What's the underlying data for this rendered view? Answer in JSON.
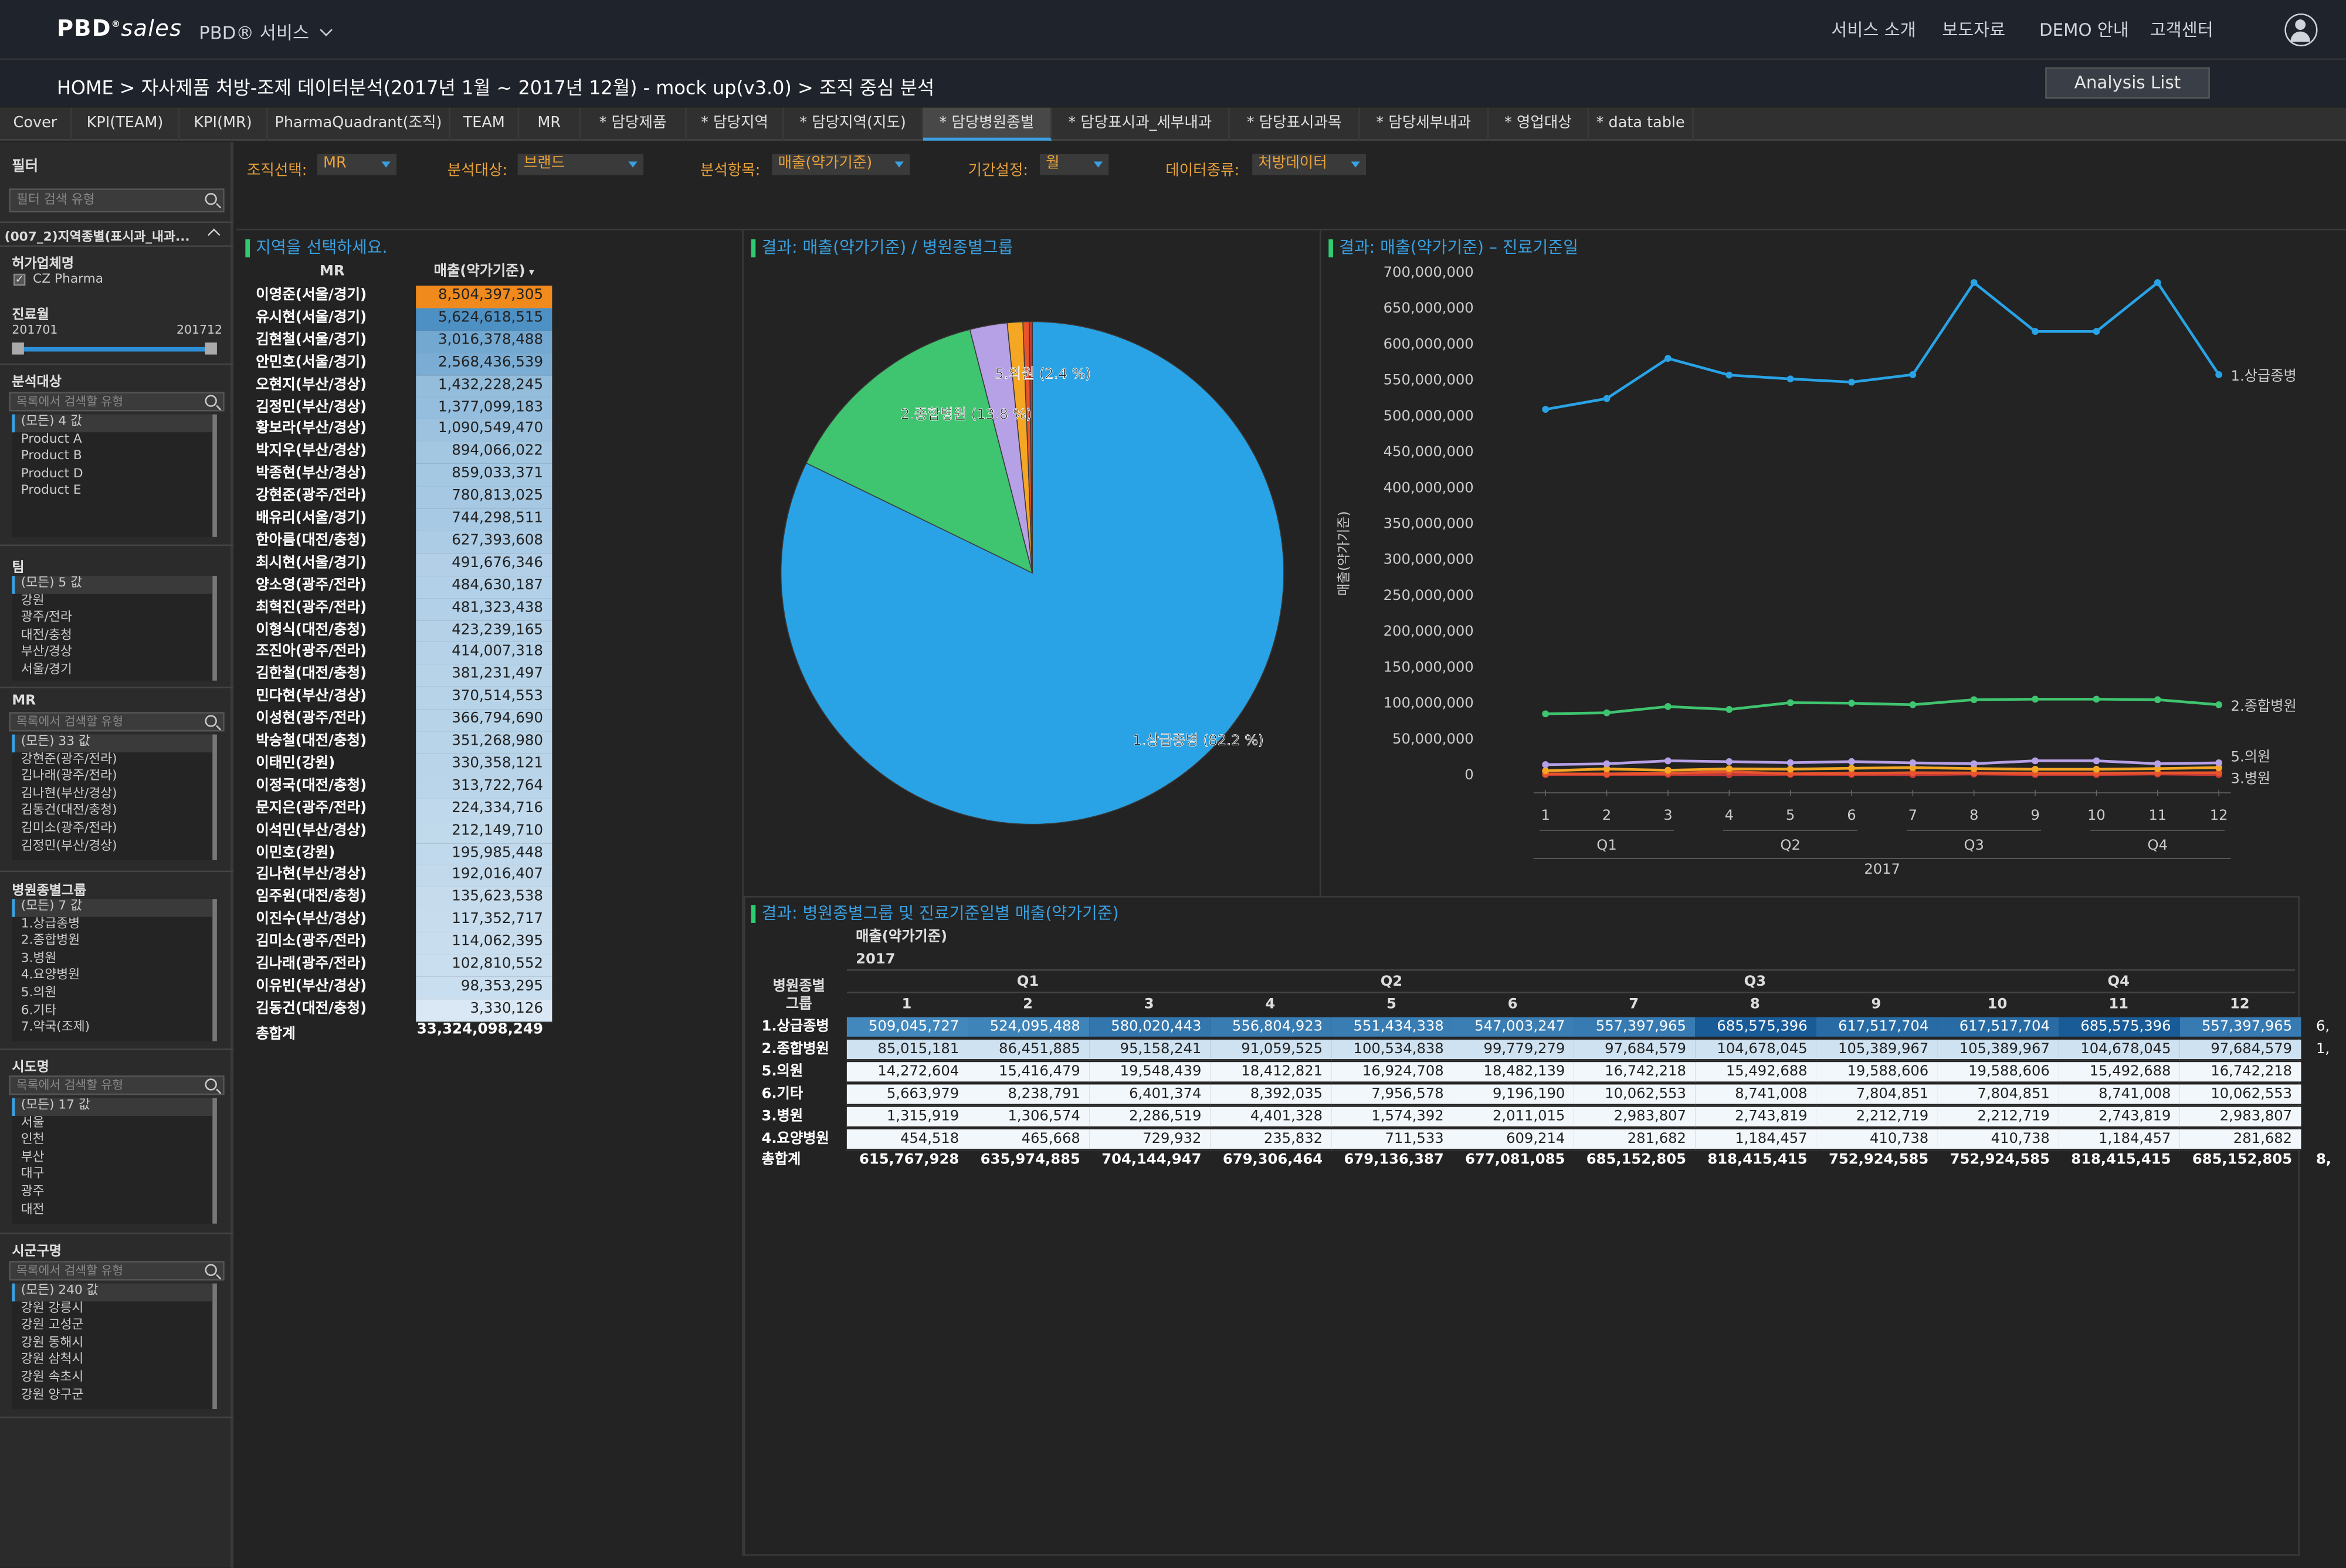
{
  "header": {
    "logo_main": "PBD",
    "logo_sales": "sales",
    "service_menu": "PBD® 서비스",
    "nav": [
      "서비스 소개",
      "보도자료",
      "DEMO 안내",
      "고객센터"
    ]
  },
  "breadcrumb": "HOME >  자사제품 처방-조제 데이터분석(2017년 1월 ~ 2017년 12월) - mock up(v3.0) > 조직 중심 분석",
  "analysis_list": "Analysis List",
  "tabs": [
    "Cover",
    "KPI(TEAM)",
    "KPI(MR)",
    "PharmaQuadrant(조직)",
    "TEAM",
    "MR",
    "* 담당제품",
    "* 담당지역",
    "* 담당지역(지도)",
    "* 담당병원종별",
    "* 담당표시과_세부내과",
    "* 담당표시과목",
    "* 담당세부내과",
    "* 영업대상",
    "* data table"
  ],
  "active_tab": "* 담당병원종별",
  "sidebar": {
    "title": "필터",
    "search_placeholder": "필터 검색 유형",
    "group_header": "(007_2)지역종별(표시과_내과...",
    "permit_title": "허가업체명",
    "permit_item": "CZ Pharma",
    "period_title": "진료월",
    "period_start": "201701",
    "period_end": "201712",
    "target_title": "분석대상",
    "target_placeholder": "목록에서 검색할 유형",
    "target_items": [
      "(모든) 4 값",
      "Product A",
      "Product B",
      "Product D",
      "Product E"
    ],
    "team_title": "팀",
    "team_items": [
      "(모든) 5 값",
      "강원",
      "광주/전라",
      "대전/충청",
      "부산/경상",
      "서울/경기"
    ],
    "mr_title": "MR",
    "mr_placeholder": "목록에서 검색할 유형",
    "mr_items": [
      "(모든) 33 값",
      "강현준(광주/전라)",
      "김나래(광주/전라)",
      "김나현(부산/경상)",
      "김동건(대전/충청)",
      "김미소(광주/전라)",
      "김정민(부산/경상)"
    ],
    "hosp_title": "병원종별그룹",
    "hosp_items": [
      "(모든) 7 값",
      "1.상급종병",
      "2.종합병원",
      "3.병원",
      "4.요양병원",
      "5.의원",
      "6.기타",
      "7.약국(조제)"
    ],
    "sido_title": "시도명",
    "sido_placeholder": "목록에서 검색할 유형",
    "sido_items": [
      "(모든) 17 값",
      "서울",
      "인천",
      "부산",
      "대구",
      "광주",
      "대전"
    ],
    "sigungu_title": "시군구명",
    "sigungu_placeholder": "목록에서 검색할 유형",
    "sigungu_items": [
      "(모든) 240 값",
      "강원 강릉시",
      "강원 고성군",
      "강원 동해시",
      "강원 삼척시",
      "강원 속초시",
      "강원 양구군"
    ]
  },
  "filters": [
    {
      "label": "조직선택:",
      "value": "MR"
    },
    {
      "label": "분석대상:",
      "value": "브랜드"
    },
    {
      "label": "분석항목:",
      "value": "매출(약가기준)"
    },
    {
      "label": "기간설정:",
      "value": "월"
    },
    {
      "label": "데이터종류:",
      "value": "처방데이터"
    }
  ],
  "mr_panel": {
    "title": "지역을 선택하세요.",
    "col_mr": "MR",
    "col_sales": "매출(약가기준)",
    "total_label": "총합계",
    "total_value": "33,324,098,249",
    "rows": [
      [
        "이영준(서울/경기)",
        "8,504,397,305",
        8504397305
      ],
      [
        "유시현(서울/경기)",
        "5,624,618,515",
        5624618515
      ],
      [
        "김현철(서울/경기)",
        "3,016,378,488",
        3016378488
      ],
      [
        "안민호(서울/경기)",
        "2,568,436,539",
        2568436539
      ],
      [
        "오현지(부산/경상)",
        "1,432,228,245",
        1432228245
      ],
      [
        "김정민(부산/경상)",
        "1,377,099,183",
        1377099183
      ],
      [
        "황보라(부산/경상)",
        "1,090,549,470",
        1090549470
      ],
      [
        "박지우(부산/경상)",
        "894,066,022",
        894066022
      ],
      [
        "박종현(부산/경상)",
        "859,033,371",
        859033371
      ],
      [
        "강현준(광주/전라)",
        "780,813,025",
        780813025
      ],
      [
        "배유리(서울/경기)",
        "744,298,511",
        744298511
      ],
      [
        "한아름(대전/충청)",
        "627,393,608",
        627393608
      ],
      [
        "최시현(서울/경기)",
        "491,676,346",
        491676346
      ],
      [
        "양소영(광주/전라)",
        "484,630,187",
        484630187
      ],
      [
        "최혁진(광주/전라)",
        "481,323,438",
        481323438
      ],
      [
        "이형식(대전/충청)",
        "423,239,165",
        423239165
      ],
      [
        "조진아(광주/전라)",
        "414,007,318",
        414007318
      ],
      [
        "김한철(대전/충청)",
        "381,231,497",
        381231497
      ],
      [
        "민다현(부산/경상)",
        "370,514,553",
        370514553
      ],
      [
        "이성현(광주/전라)",
        "366,794,690",
        366794690
      ],
      [
        "박승철(대전/충청)",
        "351,268,980",
        351268980
      ],
      [
        "이태민(강원)",
        "330,358,121",
        330358121
      ],
      [
        "이정국(대전/충청)",
        "313,722,764",
        313722764
      ],
      [
        "문지은(광주/전라)",
        "224,334,716",
        224334716
      ],
      [
        "이석민(부산/경상)",
        "212,149,710",
        212149710
      ],
      [
        "이민호(강원)",
        "195,985,448",
        195985448
      ],
      [
        "김나현(부산/경상)",
        "192,016,407",
        192016407
      ],
      [
        "임주원(대전/충청)",
        "135,623,538",
        135623538
      ],
      [
        "이진수(부산/경상)",
        "117,352,717",
        117352717
      ],
      [
        "김미소(광주/전라)",
        "114,062,395",
        114062395
      ],
      [
        "김나래(광주/전라)",
        "102,810,552",
        102810552
      ],
      [
        "이유빈(부산/경상)",
        "98,353,295",
        98353295
      ],
      [
        "김동건(대전/충청)",
        "3,330,126",
        3330126
      ]
    ]
  },
  "pie_panel": {
    "title": "결과: 매출(약가기준) / 병원종별그룹"
  },
  "line_panel": {
    "title": "결과: 매출(약가기준) – 진료기준일",
    "ylabel": "매출(약가기준)",
    "year": "2017",
    "quarters": [
      "Q1",
      "Q2",
      "Q3",
      "Q4"
    ]
  },
  "table_panel": {
    "title": "결과: 병원종별그룹 및 진료기준일별 매출(약가기준)",
    "measure": "매출(약가기준)",
    "year": "2017",
    "row_header": "병원종별\n그룹",
    "quarters": [
      "Q1",
      "Q2",
      "Q3",
      "Q4"
    ],
    "months": [
      "1",
      "2",
      "3",
      "4",
      "5",
      "6",
      "7",
      "8",
      "9",
      "10",
      "11",
      "12"
    ],
    "rows": [
      {
        "label": "1.상급종병",
        "values": [
          "509,045,727",
          "524,095,488",
          "580,020,443",
          "556,804,923",
          "551,434,338",
          "547,003,247",
          "557,397,965",
          "685,575,396",
          "617,517,704",
          "617,517,704",
          "685,575,396",
          "557,397,965"
        ],
        "overflow": "6,"
      },
      {
        "label": "2.종합병원",
        "values": [
          "85,015,181",
          "86,451,885",
          "95,158,241",
          "91,059,525",
          "100,534,838",
          "99,779,279",
          "97,684,579",
          "104,678,045",
          "105,389,967",
          "105,389,967",
          "104,678,045",
          "97,684,579"
        ],
        "overflow": "1,"
      },
      {
        "label": "5.의원",
        "values": [
          "14,272,604",
          "15,416,479",
          "19,548,439",
          "18,412,821",
          "16,924,708",
          "18,482,139",
          "16,742,218",
          "15,492,688",
          "19,588,606",
          "19,588,606",
          "15,492,688",
          "16,742,218"
        ],
        "overflow": ""
      },
      {
        "label": "6.기타",
        "values": [
          "5,663,979",
          "8,238,791",
          "6,401,374",
          "8,392,035",
          "7,956,578",
          "9,196,190",
          "10,062,553",
          "8,741,008",
          "7,804,851",
          "7,804,851",
          "8,741,008",
          "10,062,553"
        ],
        "overflow": ""
      },
      {
        "label": "3.병원",
        "values": [
          "1,315,919",
          "1,306,574",
          "2,286,519",
          "4,401,328",
          "1,574,392",
          "2,011,015",
          "2,983,807",
          "2,743,819",
          "2,212,719",
          "2,212,719",
          "2,743,819",
          "2,983,807"
        ],
        "overflow": ""
      },
      {
        "label": "4.요양병원",
        "values": [
          "454,518",
          "465,668",
          "729,932",
          "235,832",
          "711,533",
          "609,214",
          "281,682",
          "1,184,457",
          "410,738",
          "410,738",
          "1,184,457",
          "281,682"
        ],
        "overflow": ""
      }
    ],
    "total": {
      "label": "총합계",
      "values": [
        "615,767,928",
        "635,974,885",
        "704,144,947",
        "679,306,464",
        "679,136,387",
        "677,081,085",
        "685,152,805",
        "818,415,415",
        "752,924,585",
        "752,924,585",
        "818,415,415",
        "685,152,805"
      ],
      "overflow": "8,"
    }
  },
  "chart_data": [
    {
      "type": "pie",
      "title": "결과: 매출(약가기준) / 병원종별그룹",
      "slices": [
        {
          "name": "1.상급종병",
          "percent": 82.2,
          "label": "1.상급종병 (82.2 %)",
          "color": "#29a3e6"
        },
        {
          "name": "2.종합병원",
          "percent": 13.8,
          "label": "2.종합병원 (13.8 %)",
          "color": "#3fc46f"
        },
        {
          "name": "5.의원",
          "percent": 2.4,
          "label": "5.의원 (2.4 %)",
          "color": "#b6a0e6"
        },
        {
          "name": "6.기타",
          "percent": 1.0,
          "label": "",
          "color": "#f5a623"
        },
        {
          "name": "3.병원",
          "percent": 0.4,
          "label": "",
          "color": "#e8552c"
        },
        {
          "name": "4.요양병원",
          "percent": 0.2,
          "label": "",
          "color": "#c43a3a"
        }
      ]
    },
    {
      "type": "line",
      "title": "결과: 매출(약가기준) – 진료기준일",
      "ylabel": "매출(약가기준)",
      "xlabel": "2017",
      "x": [
        1,
        2,
        3,
        4,
        5,
        6,
        7,
        8,
        9,
        10,
        11,
        12
      ],
      "ylim": [
        0,
        700000000
      ],
      "yticks": [
        "700,000,000",
        "650,000,000",
        "600,000,000",
        "550,000,000",
        "500,000,000",
        "450,000,000",
        "400,000,000",
        "350,000,000",
        "300,000,000",
        "250,000,000",
        "200,000,000",
        "150,000,000",
        "100,000,000",
        "50,000,000",
        "0"
      ],
      "series": [
        {
          "name": "1.상급종병",
          "color": "#29a3e6",
          "values": [
            509045727,
            524095488,
            580020443,
            556804923,
            551434338,
            547003247,
            557397965,
            685575396,
            617517704,
            617517704,
            685575396,
            557397965
          ]
        },
        {
          "name": "2.종합병원",
          "color": "#3fc46f",
          "values": [
            85015181,
            86451885,
            95158241,
            91059525,
            100534838,
            99779279,
            97684579,
            104678045,
            105389967,
            105389967,
            104678045,
            97684579
          ]
        },
        {
          "name": "5.의원",
          "color": "#b6a0e6",
          "values": [
            14272604,
            15416479,
            19548439,
            18412821,
            16924708,
            18482139,
            16742218,
            15492688,
            19588606,
            19588606,
            15492688,
            16742218
          ]
        },
        {
          "name": "6.기타",
          "color": "#f5a623",
          "values": [
            5663979,
            8238791,
            6401374,
            8392035,
            7956578,
            9196190,
            10062553,
            8741008,
            7804851,
            7804851,
            8741008,
            10062553
          ]
        },
        {
          "name": "3.병원",
          "color": "#e8552c",
          "values": [
            1315919,
            1306574,
            2286519,
            4401328,
            1574392,
            2011015,
            2983807,
            2743819,
            2212719,
            2212719,
            2743819,
            2983807
          ]
        },
        {
          "name": "4.요양병원",
          "color": "#c43a3a",
          "values": [
            454518,
            465668,
            729932,
            235832,
            711533,
            609214,
            281682,
            1184457,
            410738,
            410738,
            1184457,
            281682
          ]
        }
      ],
      "end_labels": [
        "1.상급종병",
        "2.종합병원",
        "5.의원",
        "3.병원"
      ]
    }
  ]
}
